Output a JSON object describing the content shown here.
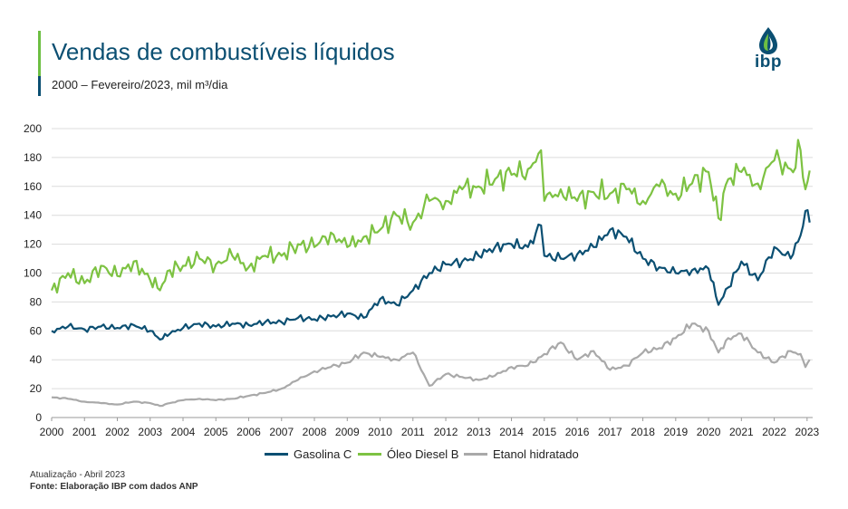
{
  "header": {
    "title": "Vendas de combustíveis líquidos",
    "subtitle": "2000 – Fevereiro/2023, mil m³/dia"
  },
  "logo": {
    "text": "ibp",
    "icon": "drop-icon",
    "colors": [
      "#0b4f72",
      "#6dbf43"
    ]
  },
  "footer": {
    "update": "Atualização - Abril 2023",
    "source": "Fonte: Elaboração IBP com dados ANP"
  },
  "colors": {
    "gasolina": "#0b4f72",
    "diesel": "#7dc242",
    "etanol": "#a9a9a9",
    "title": "#0b4f72"
  },
  "chart_data": {
    "type": "line",
    "title": "Vendas de combustíveis líquidos",
    "subtitle": "2000 – Fevereiro/2023, mil m³/dia",
    "xlabel": "",
    "ylabel": "",
    "x_ticks": [
      "2000",
      "2001",
      "2002",
      "2003",
      "2004",
      "2005",
      "2006",
      "2007",
      "2008",
      "2009",
      "2010",
      "2011",
      "2012",
      "2013",
      "2014",
      "2015",
      "2016",
      "2017",
      "2018",
      "2019",
      "2020",
      "2021",
      "2022",
      "2023"
    ],
    "y_ticks": [
      0,
      20,
      40,
      60,
      80,
      100,
      120,
      140,
      160,
      180,
      200
    ],
    "xlim": [
      2000,
      2023.17
    ],
    "ylim": [
      0,
      200
    ],
    "grid": "horizontal",
    "legend": "bottom",
    "series": [
      {
        "name": "Gasolina C",
        "color": "#0b4f72",
        "x": [
          2000,
          2000.5,
          2001,
          2001.5,
          2002,
          2002.5,
          2003,
          2003.3,
          2003.6,
          2004,
          2004.5,
          2005,
          2005.5,
          2006,
          2006.5,
          2007,
          2007.5,
          2008,
          2008.5,
          2009,
          2009.5,
          2010,
          2010.5,
          2011,
          2011.5,
          2012,
          2012.5,
          2013,
          2013.5,
          2014,
          2014.5,
          2014.9,
          2015,
          2015.5,
          2016,
          2016.5,
          2017,
          2017.5,
          2018,
          2018.5,
          2019,
          2019.5,
          2020,
          2020.3,
          2020.6,
          2021,
          2021.5,
          2022,
          2022.5,
          2022.8,
          2022.95,
          2023.08
        ],
        "y": [
          60,
          63,
          61,
          63,
          62,
          64,
          60,
          54,
          58,
          62,
          65,
          63,
          65,
          64,
          66,
          66,
          69,
          68,
          70,
          72,
          69,
          82,
          78,
          88,
          100,
          106,
          108,
          112,
          118,
          120,
          118,
          133,
          112,
          110,
          113,
          118,
          130,
          125,
          110,
          104,
          100,
          102,
          103,
          78,
          90,
          108,
          95,
          118,
          110,
          126,
          143,
          135
        ]
      },
      {
        "name": "Óleo Diesel B",
        "color": "#7dc242",
        "x": [
          2000,
          2000.5,
          2001,
          2001.5,
          2002,
          2002.5,
          2003,
          2003.3,
          2003.6,
          2004,
          2004.5,
          2005,
          2005.5,
          2006,
          2006.5,
          2007,
          2007.5,
          2008,
          2008.5,
          2009,
          2009.5,
          2010,
          2010.5,
          2011,
          2011.5,
          2012,
          2012.5,
          2013,
          2013.5,
          2014,
          2014.5,
          2014.9,
          2015,
          2015.5,
          2016,
          2016.5,
          2017,
          2017.5,
          2018,
          2018.5,
          2019,
          2019.5,
          2020,
          2020.3,
          2020.6,
          2021,
          2021.5,
          2022,
          2022.5,
          2022.8,
          2022.95,
          2023.08
        ],
        "y": [
          88,
          100,
          93,
          105,
          98,
          108,
          95,
          88,
          102,
          105,
          110,
          106,
          112,
          104,
          112,
          112,
          120,
          118,
          128,
          118,
          125,
          130,
          140,
          135,
          150,
          150,
          158,
          160,
          165,
          168,
          172,
          185,
          150,
          158,
          150,
          156,
          155,
          158,
          150,
          160,
          155,
          162,
          170,
          138,
          165,
          170,
          162,
          178,
          172,
          185,
          158,
          171
        ]
      },
      {
        "name": "Etanol hidratado",
        "color": "#a9a9a9",
        "x": [
          2000,
          2000.5,
          2001,
          2001.5,
          2002,
          2002.5,
          2003,
          2003.3,
          2003.6,
          2004,
          2004.5,
          2005,
          2005.5,
          2006,
          2006.5,
          2007,
          2007.5,
          2008,
          2008.5,
          2009,
          2009.5,
          2010,
          2010.5,
          2011,
          2011.5,
          2012,
          2012.5,
          2013,
          2013.5,
          2014,
          2014.5,
          2014.9,
          2015,
          2015.5,
          2016,
          2016.5,
          2017,
          2017.5,
          2018,
          2018.5,
          2019,
          2019.5,
          2020,
          2020.3,
          2020.6,
          2021,
          2021.5,
          2022,
          2022.5,
          2022.8,
          2022.95,
          2023.08
        ],
        "y": [
          14,
          13,
          11,
          10,
          9,
          11,
          10,
          8,
          10,
          12,
          13,
          12,
          13,
          15,
          17,
          20,
          26,
          32,
          35,
          38,
          45,
          42,
          40,
          45,
          22,
          30,
          28,
          26,
          29,
          35,
          36,
          42,
          44,
          52,
          40,
          46,
          33,
          36,
          45,
          48,
          55,
          65,
          60,
          45,
          55,
          58,
          45,
          38,
          46,
          44,
          35,
          40
        ]
      }
    ]
  }
}
